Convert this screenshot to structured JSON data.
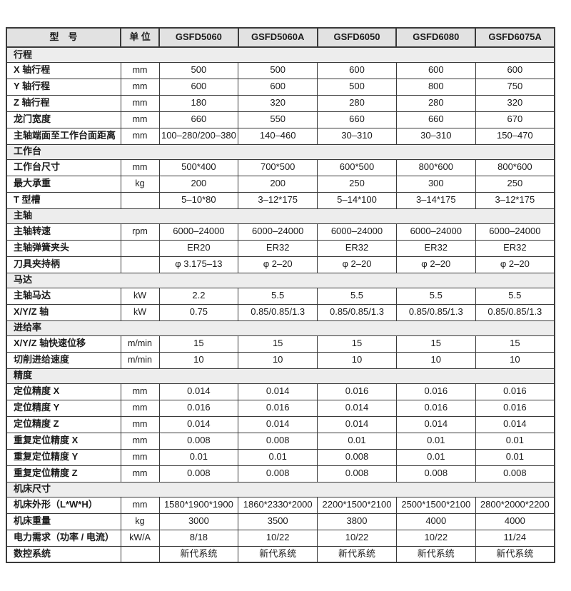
{
  "colors": {
    "header_background": "#e2e2e2",
    "section_background": "#ededed",
    "border": "#3a3a3a",
    "text": "#1a1a1a",
    "page_background": "#ffffff"
  },
  "table": {
    "header": {
      "model_label": "型　号",
      "unit_label": "单 位",
      "models": [
        "GSFD5060",
        "GSFD5060A",
        "GSFD6050",
        "GSFD6080",
        "GSFD6075A"
      ]
    },
    "sections": [
      {
        "title": "行程",
        "rows": [
          {
            "label": "X 轴行程",
            "unit": "mm",
            "values": [
              "500",
              "500",
              "600",
              "600",
              "600"
            ]
          },
          {
            "label": "Y 轴行程",
            "unit": "mm",
            "values": [
              "600",
              "600",
              "500",
              "800",
              "750"
            ]
          },
          {
            "label": "Z 轴行程",
            "unit": "mm",
            "values": [
              "180",
              "320",
              "280",
              "280",
              "320"
            ]
          },
          {
            "label": "龙门宽度",
            "unit": "mm",
            "values": [
              "660",
              "550",
              "660",
              "660",
              "670"
            ]
          },
          {
            "label": "主轴端面至工作台面距离",
            "unit": "mm",
            "values": [
              "100–280/200–380",
              "140–460",
              "30–310",
              "30–310",
              "150–470"
            ]
          }
        ]
      },
      {
        "title": "工作台",
        "rows": [
          {
            "label": "工作台尺寸",
            "unit": "mm",
            "values": [
              "500*400",
              "700*500",
              "600*500",
              "800*600",
              "800*600"
            ]
          },
          {
            "label": "最大承重",
            "unit": "kg",
            "values": [
              "200",
              "200",
              "250",
              "300",
              "250"
            ]
          },
          {
            "label": "T 型槽",
            "unit": "",
            "values": [
              "5–10*80",
              "3–12*175",
              "5–14*100",
              "3–14*175",
              "3–12*175"
            ]
          }
        ]
      },
      {
        "title": "主轴",
        "rows": [
          {
            "label": "主轴转速",
            "unit": "rpm",
            "values": [
              "6000–24000",
              "6000–24000",
              "6000–24000",
              "6000–24000",
              "6000–24000"
            ]
          },
          {
            "label": "主轴弹簧夹头",
            "unit": "",
            "values": [
              "ER20",
              "ER32",
              "ER32",
              "ER32",
              "ER32"
            ]
          },
          {
            "label": "刀具夹持柄",
            "unit": "",
            "values": [
              "φ 3.175–13",
              "φ 2–20",
              "φ 2–20",
              "φ 2–20",
              "φ 2–20"
            ]
          }
        ]
      },
      {
        "title": "马达",
        "rows": [
          {
            "label": "主轴马达",
            "unit": "kW",
            "values": [
              "2.2",
              "5.5",
              "5.5",
              "5.5",
              "5.5"
            ]
          },
          {
            "label": "X/Y/Z 轴",
            "unit": "kW",
            "values": [
              "0.75",
              "0.85/0.85/1.3",
              "0.85/0.85/1.3",
              "0.85/0.85/1.3",
              "0.85/0.85/1.3"
            ]
          }
        ]
      },
      {
        "title": "进给率",
        "rows": [
          {
            "label": "X/Y/Z 轴快速位移",
            "unit": "m/min",
            "values": [
              "15",
              "15",
              "15",
              "15",
              "15"
            ]
          },
          {
            "label": "切削进给速度",
            "unit": "m/min",
            "values": [
              "10",
              "10",
              "10",
              "10",
              "10"
            ]
          }
        ]
      },
      {
        "title": "精度",
        "rows": [
          {
            "label": "定位精度 X",
            "unit": "mm",
            "values": [
              "0.014",
              "0.014",
              "0.016",
              "0.016",
              "0.016"
            ]
          },
          {
            "label": "定位精度 Y",
            "unit": "mm",
            "values": [
              "0.016",
              "0.016",
              "0.014",
              "0.016",
              "0.016"
            ]
          },
          {
            "label": "定位精度 Z",
            "unit": "mm",
            "values": [
              "0.014",
              "0.014",
              "0.014",
              "0.014",
              "0.014"
            ]
          },
          {
            "label": "重复定位精度 X",
            "unit": "mm",
            "values": [
              "0.008",
              "0.008",
              "0.01",
              "0.01",
              "0.01"
            ]
          },
          {
            "label": "重复定位精度 Y",
            "unit": "mm",
            "values": [
              "0.01",
              "0.01",
              "0.008",
              "0.01",
              "0.01"
            ]
          },
          {
            "label": "重复定位精度 Z",
            "unit": "mm",
            "values": [
              "0.008",
              "0.008",
              "0.008",
              "0.008",
              "0.008"
            ]
          }
        ]
      },
      {
        "title": "机床尺寸",
        "rows": [
          {
            "label": "机床外形（L*W*H）",
            "unit": "mm",
            "values": [
              "1580*1900*1900",
              "1860*2330*2000",
              "2200*1500*2100",
              "2500*1500*2100",
              "2800*2000*2200"
            ]
          },
          {
            "label": "机床重量",
            "unit": "kg",
            "values": [
              "3000",
              "3500",
              "3800",
              "4000",
              "4000"
            ]
          },
          {
            "label": "电力需求（功率 / 电流）",
            "unit": "kW/A",
            "values": [
              "8/18",
              "10/22",
              "10/22",
              "10/22",
              "11/24"
            ]
          },
          {
            "label": "数控系统",
            "unit": "",
            "values": [
              "新代系统",
              "新代系统",
              "新代系统",
              "新代系统",
              "新代系统"
            ]
          }
        ]
      }
    ]
  }
}
